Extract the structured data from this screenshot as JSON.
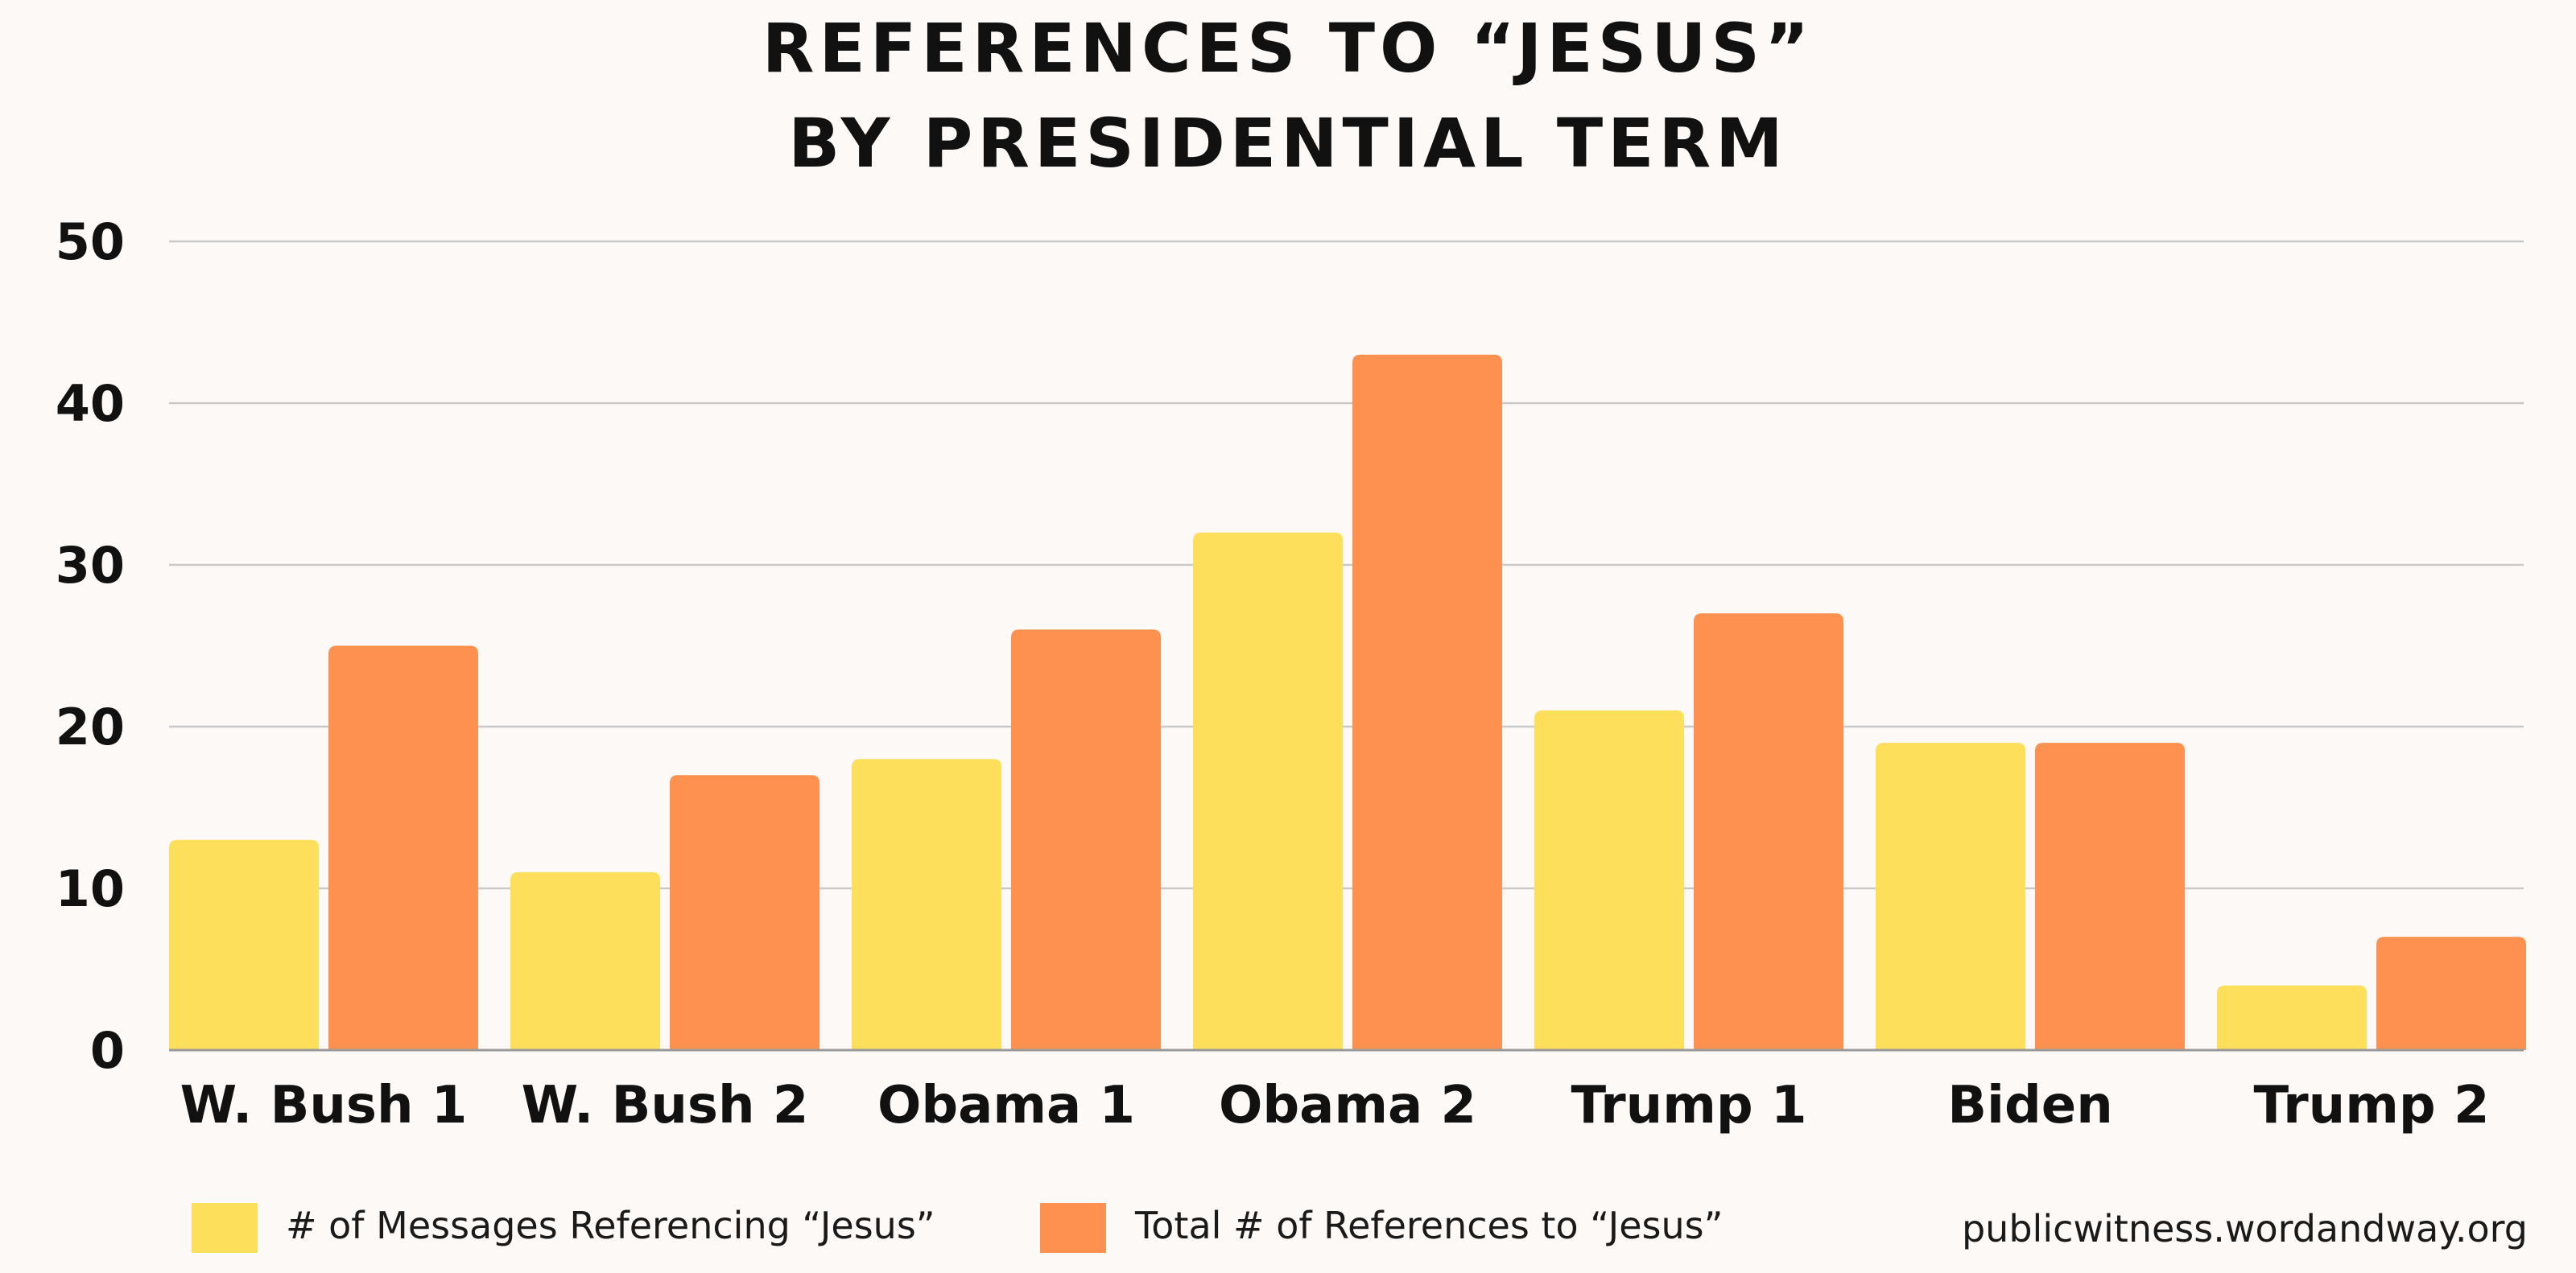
{
  "chart_data": {
    "type": "bar",
    "title_lines": [
      "REFERENCES TO “JESUS”",
      "BY PRESIDENTIAL TERM"
    ],
    "categories": [
      "W. Bush 1",
      "W. Bush 2",
      "Obama 1",
      "Obama 2",
      "Trump 1",
      "Biden",
      "Trump 2"
    ],
    "series": [
      {
        "name": "# of Messages Referencing “Jesus”",
        "color": "#fddf5c",
        "values": [
          13,
          11,
          18,
          32,
          21,
          19,
          4
        ]
      },
      {
        "name": "Total # of References to “Jesus”",
        "color": "#fe914f",
        "values": [
          25,
          17,
          26,
          43,
          27,
          19,
          7
        ]
      }
    ],
    "ylim": [
      0,
      50
    ],
    "yticks": [
      0,
      10,
      20,
      30,
      40,
      50
    ],
    "grid": true,
    "legend_position": "bottom-left",
    "xlabel": "",
    "ylabel": ""
  },
  "source": "publicwitness.wordandway.org"
}
